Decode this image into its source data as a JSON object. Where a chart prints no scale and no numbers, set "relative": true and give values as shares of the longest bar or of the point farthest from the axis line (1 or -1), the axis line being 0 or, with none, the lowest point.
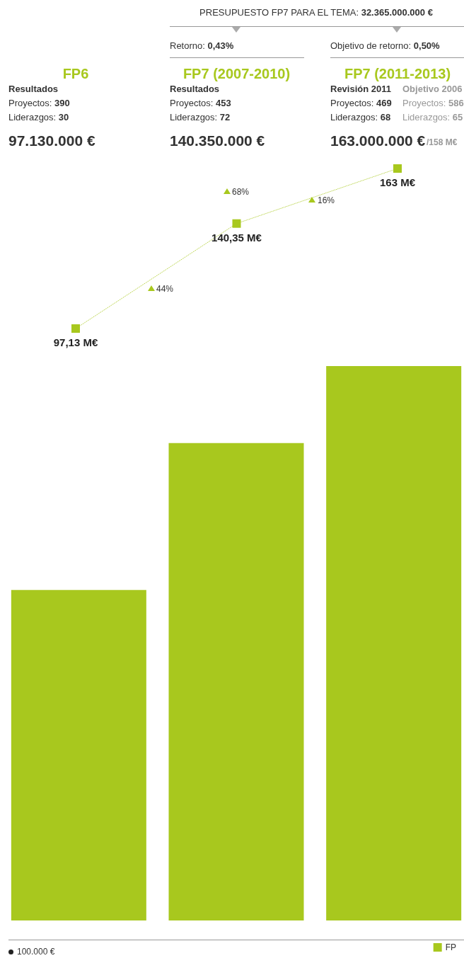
{
  "chart_data": [
    {
      "type": "line",
      "categories": [
        "FP6",
        "FP7 (2007-2010)",
        "FP7 (2011-2013)"
      ],
      "series": [
        {
          "color": "#a8c81e",
          "values": [
            97.13,
            140.35,
            163
          ],
          "value_labels": [
            "97,13 M€",
            "140,35 M€",
            "163 M€"
          ]
        }
      ],
      "marker": "square",
      "line_style": "dotted",
      "annotations": [
        "PRESUPUESTO FP7 PARA EL TEMA: 32.365.000.000 €",
        "Retorno: 0,43%",
        "Objetivo de retorno: 0,50%",
        "Resultados",
        "Proyectos: 390",
        "Liderazgos: 30",
        "97.130.000 €",
        "Resultados",
        "Proyectos: 453",
        "Liderazgos: 72",
        "140.350.000 €",
        "Revisión 2011",
        "Objetivo 2006",
        "Proyectos: 469",
        "Proyectos: 586",
        "Liderazgos: 68",
        "Liderazgos: 65",
        "163.000.000 €",
        "/158 M€",
        "44%",
        "68%",
        "16%"
      ]
    },
    {
      "type": "bar",
      "relative": true,
      "categories": [
        null,
        null,
        null
      ],
      "series": [
        {
          "name": "FP",
          "color": "#a8c81e",
          "values": [
            0.596,
            0.861,
            1
          ]
        }
      ],
      "legend": "bottom right",
      "annotations": [
        "100.000 €"
      ]
    }
  ]
}
